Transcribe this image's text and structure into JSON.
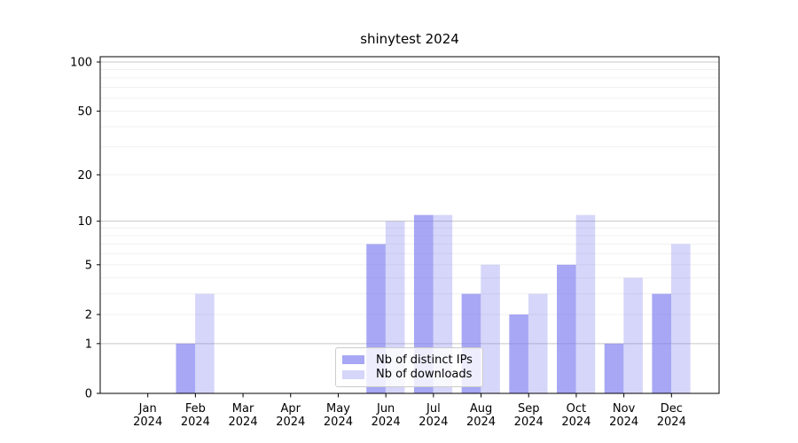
{
  "chart_data": {
    "type": "bar",
    "title": "shinytest 2024",
    "x_tick_labels": [
      [
        "Jan",
        "2024"
      ],
      [
        "Feb",
        "2024"
      ],
      [
        "Mar",
        "2024"
      ],
      [
        "Apr",
        "2024"
      ],
      [
        "May",
        "2024"
      ],
      [
        "Jun",
        "2024"
      ],
      [
        "Jul",
        "2024"
      ],
      [
        "Aug",
        "2024"
      ],
      [
        "Sep",
        "2024"
      ],
      [
        "Oct",
        "2024"
      ],
      [
        "Nov",
        "2024"
      ],
      [
        "Dec",
        "2024"
      ]
    ],
    "series": [
      {
        "name": "Nb of distinct IPs",
        "key": "distinct-ips",
        "values": [
          0,
          1,
          0,
          0,
          0,
          7,
          11,
          3,
          2,
          5,
          1,
          3
        ],
        "fill_opacity": 0.65
      },
      {
        "name": "Nb of downloads",
        "key": "downloads",
        "values": [
          0,
          3,
          0,
          0,
          0,
          10,
          11,
          5,
          3,
          11,
          4,
          7
        ],
        "fill_opacity": 0.3
      }
    ],
    "yscale": "log1p",
    "ylim": [
      0,
      108
    ],
    "y_ticks": [
      {
        "value": 0,
        "label": "0"
      },
      {
        "value": 1,
        "label": "1"
      },
      {
        "value": 2,
        "label": "2"
      },
      {
        "value": 5,
        "label": "5"
      },
      {
        "value": 10,
        "label": "10"
      },
      {
        "value": 20,
        "label": "20"
      },
      {
        "value": 50,
        "label": "50"
      },
      {
        "value": 100,
        "label": "100"
      }
    ],
    "grid_major_values": [
      1,
      10,
      100
    ],
    "grid_minor_values": [
      2,
      3,
      4,
      5,
      6,
      7,
      8,
      9,
      20,
      30,
      40,
      50,
      60,
      70,
      80,
      90
    ],
    "legend_position": "lower center",
    "colors": {
      "bar_base": "#7878f0",
      "grid_major": "#c6c6c6",
      "grid_minor": "#f0f0f0",
      "spine": "#000000",
      "tick_text": "#000000",
      "background": "#ffffff",
      "legend_border": "#cccccc"
    }
  }
}
